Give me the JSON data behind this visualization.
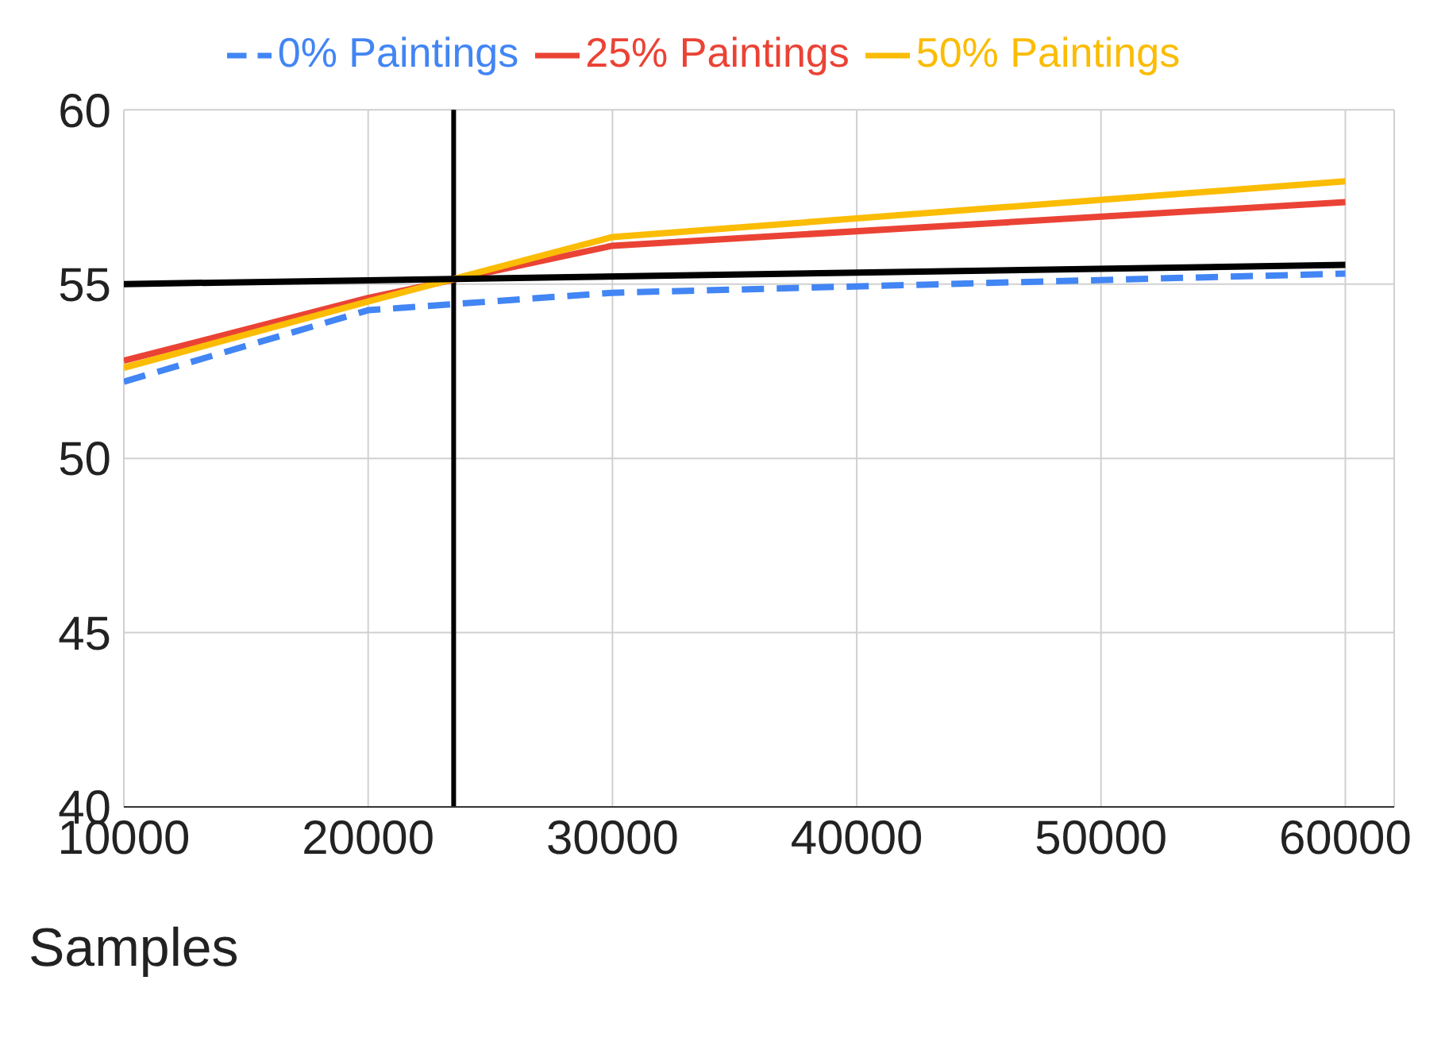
{
  "chart_data": {
    "type": "line",
    "xlabel": "Samples",
    "x": [
      10000,
      20000,
      30000,
      60000
    ],
    "series": [
      {
        "name": "0% Paintings",
        "color": "#4285f4",
        "line_style": "dashed",
        "values": [
          52.2,
          54.25,
          54.75,
          55.3
        ]
      },
      {
        "name": "25% Paintings",
        "color": "#ea4335",
        "line_style": "solid",
        "values": [
          52.8,
          54.6,
          56.1,
          57.35
        ]
      },
      {
        "name": "50%  Paintings",
        "color": "#fbbc04",
        "line_style": "solid",
        "values": [
          52.6,
          54.5,
          56.35,
          57.95
        ]
      },
      {
        "color": "#000000",
        "line_style": "solid",
        "x": [
          10000,
          60000
        ],
        "values": [
          55,
          55.55
        ]
      }
    ],
    "ref_lines": [
      {
        "axis": "x",
        "value": 23500,
        "color": "#000000"
      }
    ],
    "xlim": [
      10000,
      62000
    ],
    "xticks": [
      10000,
      20000,
      30000,
      40000,
      50000,
      60000
    ],
    "ylim": [
      40,
      60
    ],
    "yticks": [
      40,
      45,
      50,
      55,
      60
    ],
    "grid": true,
    "legend": "top",
    "marker": "none"
  }
}
